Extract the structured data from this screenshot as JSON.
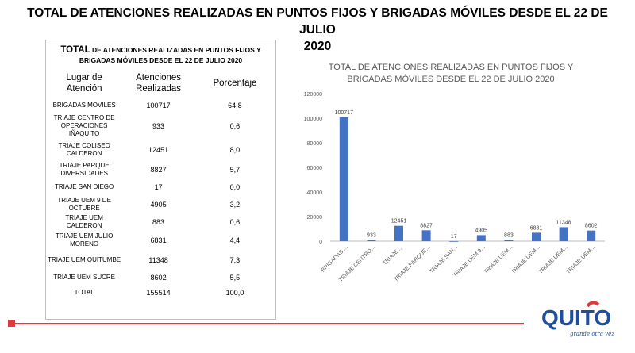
{
  "page_title_line1": "TOTAL DE ATENCIONES REALIZADAS EN PUNTOS FIJOS Y BRIGADAS MÓVILES DESDE EL 22 DE JULIO",
  "page_title_line2": "2020",
  "table": {
    "title_lead": "TOTAL",
    "title_rest": " DE ATENCIONES REALIZADAS EN PUNTOS FIJOS Y BRIGADAS MÓVILES DESDE EL 22 DE JULIO 2020",
    "headers": [
      "Lugar de Atención",
      "Atenciones Realizadas",
      "Porcentaje"
    ],
    "rows": [
      {
        "place": "BRIGADAS MOVILES",
        "count": "100717",
        "pct": "64,8"
      },
      {
        "place": "TRIAJE CENTRO DE OPERACIONES IÑAQUITO",
        "count": "933",
        "pct": "0,6"
      },
      {
        "place": "TRIAJE COLISEO CALDERON",
        "count": "12451",
        "pct": "8,0"
      },
      {
        "place": "TRIAJE PARQUE DIVERSIDADES",
        "count": "8827",
        "pct": "5,7"
      },
      {
        "place": "TRIAJE SAN DIEGO",
        "count": "17",
        "pct": "0,0"
      },
      {
        "place": "TRIAJE UEM 9 DE OCTUBRE",
        "count": "4905",
        "pct": "3,2"
      },
      {
        "place": "TRIAJE UEM CALDERON",
        "count": "883",
        "pct": "0,6"
      },
      {
        "place": "TRIAJE UEM JULIO MORENO",
        "count": "6831",
        "pct": "4,4"
      },
      {
        "place": "TRIAJE UEM QUITUMBE",
        "count": "11348",
        "pct": "7,3"
      },
      {
        "place": "TRIAJE UEM SUCRE",
        "count": "8602",
        "pct": "5,5"
      },
      {
        "place": "TOTAL",
        "count": "155514",
        "pct": "100,0"
      }
    ]
  },
  "chart_data": {
    "type": "bar",
    "title": "TOTAL DE ATENCIONES REALIZADAS EN PUNTOS FIJOS Y BRIGADAS MÓVILES DESDE EL 22 DE JULIO 2020",
    "categories": [
      "BRIGADAS ...",
      "TRIAJE CENTRO...",
      "TRIAJE ...",
      "TRIAJE PARQUE...",
      "TRIAJE SAN...",
      "TRIAJE UEM 9...",
      "TRIAJE UEM...",
      "TRIAJE UEM...",
      "TRIAJE UEM...",
      "TRIAJE UEM..."
    ],
    "values": [
      100717,
      933,
      12451,
      8827,
      17,
      4905,
      883,
      6831,
      11348,
      8602
    ],
    "data_labels": [
      "100717",
      "933",
      "12451",
      "8827",
      "17",
      "4905",
      "883",
      "6831",
      "11348",
      "8602"
    ],
    "yticks": [
      0,
      20000,
      40000,
      60000,
      80000,
      100000,
      120000
    ],
    "ylim": [
      0,
      120000
    ],
    "grid": false,
    "bar_color": "#4472c4"
  },
  "colors": {
    "accent": "#e03a3a",
    "logo_blue": "#1f4e9c"
  },
  "logo": {
    "text": "QUITO",
    "tagline": "grande otra vez"
  }
}
